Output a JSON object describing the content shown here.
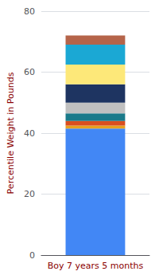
{
  "chart_data": {
    "type": "bar",
    "stacked": true,
    "categories": [
      "Boy 7 years 5 months"
    ],
    "series": [
      {
        "color": "#4287f5",
        "values": [
          41.5
        ]
      },
      {
        "color": "#e8a020",
        "values": [
          1.0
        ]
      },
      {
        "color": "#d94e1f",
        "values": [
          1.5
        ]
      },
      {
        "color": "#1a7a8a",
        "values": [
          2.5
        ]
      },
      {
        "color": "#c0c0c0",
        "values": [
          3.5
        ]
      },
      {
        "color": "#1e3461",
        "values": [
          6.0
        ]
      },
      {
        "color": "#fde879",
        "values": [
          6.5
        ]
      },
      {
        "color": "#1ba8d4",
        "values": [
          6.5
        ]
      },
      {
        "color": "#b5644a",
        "values": [
          3.0
        ]
      }
    ],
    "ylabel": "Percentile Weight in Pounds",
    "ylim": [
      0,
      80
    ],
    "yticks": [
      0,
      20,
      40,
      60,
      80
    ],
    "grid": true
  }
}
